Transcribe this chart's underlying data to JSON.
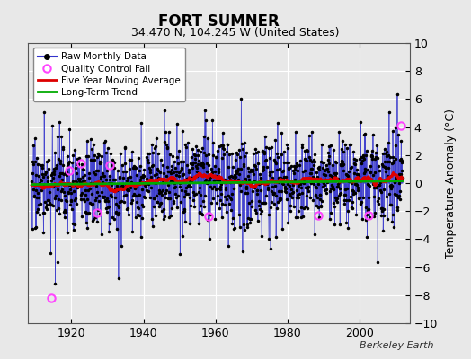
{
  "title": "FORT SUMNER",
  "subtitle": "34.470 N, 104.245 W (United States)",
  "ylabel": "Temperature Anomaly (°C)",
  "watermark": "Berkeley Earth",
  "ylim": [
    -10,
    10
  ],
  "xlim": [
    1908,
    2014
  ],
  "yticks": [
    -10,
    -8,
    -6,
    -4,
    -2,
    0,
    2,
    4,
    6,
    8,
    10
  ],
  "xticks": [
    1920,
    1940,
    1960,
    1980,
    2000
  ],
  "background_color": "#e8e8e8",
  "plot_bg_color": "#e8e8e8",
  "raw_line_color": "#3333cc",
  "raw_dot_color": "#000000",
  "qc_fail_color": "#ff44ff",
  "moving_avg_color": "#dd0000",
  "trend_color": "#00aa00",
  "seed": 17,
  "n_months": 1236,
  "start_year": 1909.0,
  "qc_fail_positions": [
    [
      1914.5,
      -8.2
    ],
    [
      1919.5,
      0.9
    ],
    [
      1922.5,
      1.4
    ],
    [
      1927.0,
      -2.1
    ],
    [
      1930.5,
      1.3
    ],
    [
      1958.0,
      -2.4
    ],
    [
      1988.5,
      -2.3
    ],
    [
      2002.5,
      -2.3
    ],
    [
      2011.5,
      4.1
    ]
  ]
}
